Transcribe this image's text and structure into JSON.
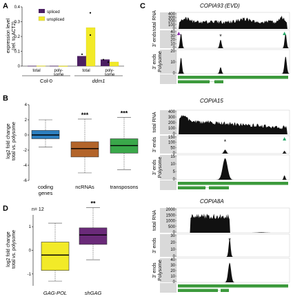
{
  "panels": {
    "A": {
      "label": "A",
      "ylabel_line1": "expression level",
      "ylabel_line2": "(rel. to ACT2)",
      "ylim": [
        0,
        0.4
      ],
      "yticks": [
        "0",
        "0.1",
        "0.2",
        "0.3",
        "0.4"
      ],
      "legend": [
        "spliced",
        "unspliced"
      ],
      "colors": {
        "spliced": "#4b1f62",
        "unspliced": "#f2ea28"
      },
      "categories": [
        "total",
        "poly-\nsome",
        "total",
        "poly-\nsome"
      ],
      "groups": [
        "Col-0",
        "ddm1"
      ],
      "chart_data": {
        "type": "bar",
        "categories": [
          "Col-0 total",
          "Col-0 polysome",
          "ddm1 total",
          "ddm1 polysome"
        ],
        "series": [
          {
            "name": "spliced",
            "values": [
              0.002,
              0.002,
              0.068,
              0.045
            ]
          },
          {
            "name": "unspliced",
            "values": [
              0.002,
              0.001,
              0.26,
              0.028
            ]
          }
        ],
        "ylim": [
          0,
          0.4
        ]
      }
    },
    "B": {
      "label": "B",
      "ylabel_line1": "log2 fold change",
      "ylabel_line2": "total vs. polysome",
      "ylim": [
        -6,
        4
      ],
      "yticks": [
        "-6",
        "-4",
        "-2",
        "0",
        "2",
        "4"
      ],
      "chart_data": {
        "type": "box",
        "categories": [
          "coding\ngenes",
          "ncRNAs",
          "transposons"
        ],
        "colors": [
          "#2d7fbf",
          "#b3642a",
          "#3aa84a"
        ],
        "boxes": [
          {
            "min": -1.6,
            "q1": -0.5,
            "median": 0.0,
            "q3": 0.6,
            "max": 2.0
          },
          {
            "min": -5.0,
            "q1": -2.9,
            "median": -1.8,
            "q3": -0.9,
            "max": 2.1
          },
          {
            "min": -4.6,
            "q1": -2.4,
            "median": -1.4,
            "q3": -0.5,
            "max": 2.3
          }
        ],
        "significance": [
          "",
          "***",
          "***"
        ]
      }
    },
    "D": {
      "label": "D",
      "n_label": "n= 12",
      "ylabel_line1": "log2 fold change",
      "ylabel_line2": "total vs. polysome",
      "ylim": [
        -1.5,
        1.5
      ],
      "yticks": [
        "-1",
        "0",
        "1"
      ],
      "chart_data": {
        "type": "box",
        "categories": [
          "GAG-POL",
          "shGAG"
        ],
        "colors": [
          "#f2ea28",
          "#6a2a79"
        ],
        "boxes": [
          {
            "min": -1.3,
            "q1": -0.85,
            "median": -0.2,
            "q3": 0.35,
            "max": 1.15
          },
          {
            "min": -0.4,
            "q1": 0.25,
            "median": 0.65,
            "q3": 0.95,
            "max": 1.8
          }
        ],
        "significance": [
          "",
          "**"
        ]
      }
    },
    "C": {
      "label": "C",
      "tracks": [
        {
          "title": "COPIA93 (EVD)",
          "rows": [
            {
              "label": "total RNA",
              "yticks": [
                "0",
                "100",
                "200",
                "300",
                "400"
              ],
              "ymax": 400
            },
            {
              "label": "3' ends",
              "yticks": [
                "0",
                "10",
                "20",
                "30",
                "40"
              ],
              "ymax": 40
            },
            {
              "label": "3' ends\nPolysome",
              "yticks": [
                "0",
                "10",
                "20"
              ],
              "ymax": 20
            }
          ],
          "markers": [
            {
              "row": 1,
              "type": "triangle",
              "pos": 0.02,
              "color": "#8b2fa8"
            },
            {
              "row": 1,
              "type": "star",
              "pos": 0.39,
              "color": "#d93030"
            },
            {
              "row": 1,
              "type": "triangle",
              "pos": 0.955,
              "color": "#2aa86a"
            }
          ]
        },
        {
          "title": "COPIA15",
          "rows": [
            {
              "label": "total RNA",
              "yticks": [
                "0",
                "100",
                "200",
                "300",
                "400"
              ],
              "ymax": 400
            },
            {
              "label": "3' ends",
              "yticks": [
                "0",
                "50",
                "100",
                "150"
              ],
              "ymax": 150
            },
            {
              "label": "3' ends\nPolysome",
              "yticks": [
                "0",
                "5",
                "10",
                "15"
              ],
              "ymax": 15
            }
          ],
          "markers": [
            {
              "row": 1,
              "type": "star",
              "pos": 0.43,
              "color": "#d93030"
            },
            {
              "row": 1,
              "type": "triangle",
              "pos": 0.955,
              "color": "#2aa86a"
            }
          ]
        },
        {
          "title": "COPIA8A",
          "rows": [
            {
              "label": "total RNA",
              "yticks": [
                "0",
                "500",
                "1000",
                "1500",
                "2000"
              ],
              "ymax": 2000
            },
            {
              "label": "3' ends",
              "yticks": [
                "0",
                "10",
                "20",
                "30"
              ],
              "ymax": 30
            },
            {
              "label": "3' ends\nPolysome",
              "yticks": [
                "0",
                "10",
                "20",
                "30",
                "40"
              ],
              "ymax": 40
            }
          ],
          "markers": [
            {
              "row": 1,
              "type": "star",
              "pos": 0.47,
              "color": "#d93030"
            }
          ]
        }
      ]
    }
  }
}
